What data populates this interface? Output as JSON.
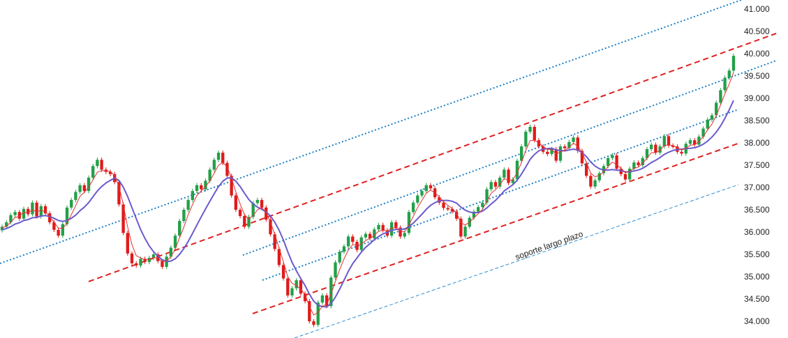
{
  "chart_data": {
    "type": "candlestick",
    "y_ticks": [
      "41.000",
      "40.500",
      "40.000",
      "39.500",
      "39.000",
      "38.500",
      "38.000",
      "37.500",
      "37.000",
      "36.500",
      "36.000",
      "35.500",
      "35.000",
      "34.500",
      "34.000"
    ],
    "ylim": [
      33.8,
      41.2
    ],
    "grid": "off",
    "colors": {
      "up": "#22a048",
      "down": "#e01a1a",
      "ma_fast": "#e53030",
      "ma_slow": "#6a5acd",
      "channel": "#e02020",
      "parallel": "#1a7fc4",
      "support": "#2f8fd0"
    },
    "close": [
      36.12,
      36.22,
      36.38,
      36.45,
      36.3,
      36.52,
      36.4,
      36.66,
      36.35,
      36.58,
      36.42,
      36.22,
      36.05,
      35.92,
      36.18,
      36.55,
      36.72,
      36.9,
      37.05,
      36.92,
      37.22,
      37.48,
      37.62,
      37.4,
      37.35,
      37.3,
      37.12,
      36.62,
      35.98,
      35.52,
      35.3,
      35.25,
      35.4,
      35.33,
      35.42,
      35.5,
      35.35,
      35.22,
      35.45,
      35.65,
      35.92,
      36.25,
      36.5,
      36.72,
      36.92,
      37.05,
      36.96,
      37.15,
      37.4,
      37.62,
      37.78,
      37.55,
      37.26,
      36.82,
      36.5,
      36.36,
      36.12,
      36.34,
      36.65,
      36.72,
      36.55,
      36.28,
      35.95,
      35.62,
      35.26,
      34.96,
      34.58,
      34.74,
      34.92,
      34.62,
      34.45,
      34.0,
      33.92,
      34.42,
      34.58,
      34.34,
      34.98,
      35.32,
      35.56,
      35.68,
      35.9,
      35.78,
      35.6,
      35.88,
      35.96,
      35.86,
      36.06,
      36.16,
      36.04,
      35.92,
      36.22,
      36.1,
      35.9,
      35.98,
      36.45,
      36.66,
      36.82,
      36.92,
      37.05,
      36.98,
      36.78,
      36.66,
      36.54,
      36.52,
      36.46,
      36.3,
      35.9,
      36.12,
      36.32,
      36.46,
      36.56,
      36.66,
      36.96,
      37.12,
      37.02,
      37.22,
      37.4,
      37.1,
      37.18,
      37.6,
      37.92,
      38.25,
      38.36,
      38.06,
      37.92,
      37.8,
      37.75,
      37.86,
      37.6,
      37.92,
      37.88,
      38.02,
      38.12,
      37.82,
      37.54,
      37.26,
      37.02,
      37.16,
      37.32,
      37.48,
      37.66,
      37.72,
      37.42,
      37.3,
      37.18,
      37.42,
      37.56,
      37.5,
      37.66,
      37.86,
      37.96,
      37.78,
      37.92,
      38.15,
      37.94,
      37.92,
      37.8,
      37.76,
      37.98,
      38.06,
      37.96,
      38.14,
      38.32,
      38.52,
      38.62,
      38.9,
      39.18,
      39.46,
      39.62,
      39.95
    ],
    "ma_fast": [
      36.1,
      36.13,
      36.22,
      36.33,
      36.35,
      36.45,
      36.43,
      36.5,
      36.45,
      36.49,
      36.45,
      36.35,
      36.22,
      36.09,
      36.08,
      36.2,
      36.39,
      36.59,
      36.8,
      36.89,
      37.01,
      37.17,
      37.34,
      37.38,
      37.37,
      37.36,
      37.27,
      37.03,
      36.62,
      36.12,
      35.72,
      35.47,
      35.42,
      35.38,
      35.39,
      35.43,
      35.41,
      35.34,
      35.35,
      35.44,
      35.62,
      35.87,
      36.11,
      36.39,
      36.62,
      36.82,
      36.92,
      37.02,
      37.15,
      37.32,
      37.5,
      37.56,
      37.46,
      37.21,
      36.9,
      36.63,
      36.39,
      36.29,
      36.37,
      36.5,
      36.55,
      36.44,
      36.22,
      35.95,
      35.64,
      35.33,
      35.0,
      34.85,
      34.8,
      34.72,
      34.6,
      34.33,
      34.14,
      34.2,
      34.34,
      34.38,
      34.61,
      34.89,
      35.16,
      35.4,
      35.6,
      35.72,
      35.7,
      35.73,
      35.81,
      35.86,
      35.93,
      36.02,
      36.04,
      36.02,
      36.09,
      36.1,
      36.03,
      36.0,
      36.16,
      36.35,
      36.55,
      36.71,
      36.87,
      36.94,
      36.88,
      36.79,
      36.68,
      36.6,
      36.53,
      36.43,
      36.21,
      36.16,
      36.22,
      36.32,
      36.41,
      36.51,
      36.69,
      36.87,
      36.95,
      37.06,
      37.2,
      37.16,
      37.17,
      37.33,
      37.56,
      37.83,
      38.05,
      38.06,
      38.0,
      37.92,
      37.85,
      37.85,
      37.75,
      37.8,
      37.83,
      37.9,
      37.99,
      37.93,
      37.78,
      37.56,
      37.32,
      37.24,
      37.27,
      37.35,
      37.47,
      37.57,
      37.51,
      37.43,
      37.33,
      37.36,
      37.43,
      37.46,
      37.54,
      37.66,
      37.78,
      37.78,
      37.83,
      37.95,
      37.95,
      37.94,
      37.89,
      37.84,
      37.88,
      37.95,
      37.96,
      38.03,
      38.14,
      38.29,
      38.42,
      38.61,
      38.85,
      39.1,
      39.32,
      39.58
    ],
    "ma_slow": [
      36.05,
      36.08,
      36.12,
      36.18,
      36.21,
      36.26,
      36.28,
      36.32,
      36.33,
      36.36,
      36.37,
      36.35,
      36.31,
      36.26,
      36.24,
      36.26,
      36.31,
      36.38,
      36.48,
      36.56,
      36.66,
      36.79,
      36.92,
      37.02,
      37.1,
      37.16,
      37.21,
      37.16,
      37.01,
      36.8,
      36.55,
      36.3,
      36.06,
      35.86,
      35.69,
      35.56,
      35.46,
      35.38,
      35.34,
      35.35,
      35.4,
      35.5,
      35.63,
      35.79,
      35.97,
      36.16,
      36.34,
      36.52,
      36.69,
      36.86,
      37.02,
      37.14,
      37.21,
      37.22,
      37.14,
      37.02,
      36.87,
      36.73,
      36.63,
      36.56,
      36.51,
      36.45,
      36.36,
      36.22,
      36.04,
      35.82,
      35.56,
      35.32,
      35.13,
      34.96,
      34.8,
      34.61,
      34.45,
      34.36,
      34.33,
      34.32,
      34.4,
      34.54,
      34.72,
      34.92,
      35.12,
      35.29,
      35.42,
      35.55,
      35.66,
      35.74,
      35.83,
      35.9,
      35.96,
      35.99,
      36.04,
      36.06,
      36.06,
      36.07,
      36.12,
      36.2,
      36.3,
      36.4,
      36.51,
      36.6,
      36.66,
      36.7,
      36.71,
      36.71,
      36.69,
      36.65,
      36.56,
      36.49,
      36.45,
      36.43,
      36.44,
      36.47,
      36.54,
      36.63,
      36.71,
      36.81,
      36.92,
      36.99,
      37.06,
      37.16,
      37.3,
      37.46,
      37.63,
      37.74,
      37.82,
      37.86,
      37.87,
      37.88,
      37.84,
      37.83,
      37.82,
      37.84,
      37.86,
      37.84,
      37.78,
      37.69,
      37.57,
      37.48,
      37.42,
      37.39,
      37.39,
      37.4,
      37.39,
      37.38,
      37.35,
      37.35,
      37.37,
      37.39,
      37.43,
      37.49,
      37.56,
      37.61,
      37.67,
      37.74,
      37.79,
      37.83,
      37.85,
      37.86,
      37.87,
      37.88,
      37.89,
      37.92,
      37.97,
      38.04,
      38.13,
      38.24,
      38.38,
      38.55,
      38.74,
      38.95
    ]
  },
  "annotation": {
    "text": "soporte largo plazo"
  }
}
